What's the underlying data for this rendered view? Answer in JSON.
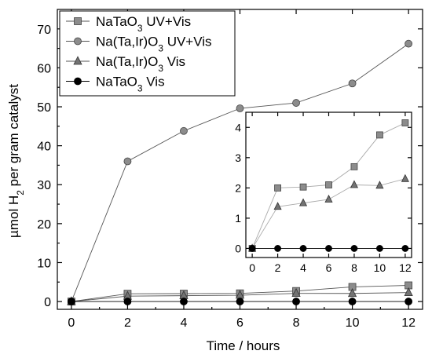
{
  "chart_data": {
    "type": "line",
    "xlabel": "Time / hours",
    "ylabel_parts": {
      "pre": "µmol H",
      "sub": "2",
      "post": " per gram catalyst"
    },
    "xlim": [
      -0.5,
      12.5
    ],
    "ylim": [
      -2,
      75
    ],
    "xticks": [
      0,
      2,
      4,
      6,
      8,
      10,
      12
    ],
    "yticks": [
      0,
      10,
      20,
      30,
      40,
      50,
      60,
      70
    ],
    "grid": false,
    "legend_position": "top-left",
    "series": [
      {
        "name": "NaTaO3 UV+Vis",
        "label_parts": {
          "pre": "NaTaO",
          "sub": "3",
          "post": " UV+Vis"
        },
        "marker": "square",
        "color": "#8c8c8c",
        "x": [
          0,
          2,
          4,
          6,
          8,
          10,
          12
        ],
        "y": [
          0,
          2.0,
          2.03,
          2.1,
          2.7,
          3.75,
          4.15
        ]
      },
      {
        "name": "Na(Ta,Ir)O3 UV+Vis",
        "label_parts": {
          "pre": "Na(Ta,Ir)O",
          "sub": "3",
          "post": " UV+Vis"
        },
        "marker": "circle",
        "color": "#8c8c8c",
        "x": [
          0,
          2,
          4,
          6,
          8,
          10,
          12
        ],
        "y": [
          0,
          36.0,
          43.8,
          49.6,
          51.0,
          56.0,
          66.2
        ]
      },
      {
        "name": "Na(Ta,Ir)O3 Vis",
        "label_parts": {
          "pre": "Na(Ta,Ir)O",
          "sub": "3",
          "post": " Vis"
        },
        "marker": "triangle",
        "color": "#737373",
        "x": [
          0,
          2,
          4,
          6,
          8,
          10,
          12
        ],
        "y": [
          0,
          1.38,
          1.5,
          1.62,
          2.1,
          2.08,
          2.3
        ]
      },
      {
        "name": "NaTaO3 Vis",
        "label_parts": {
          "pre": "NaTaO",
          "sub": "3",
          "post": " Vis"
        },
        "marker": "circle",
        "color": "#000000",
        "x": [
          0,
          2,
          4,
          6,
          8,
          10,
          12
        ],
        "y": [
          0,
          0,
          0,
          0,
          0,
          0,
          0
        ]
      }
    ],
    "inset": {
      "xlim": [
        -0.5,
        12.5
      ],
      "ylim": [
        -0.3,
        4.5
      ],
      "xticks": [
        0,
        2,
        4,
        6,
        8,
        10,
        12
      ],
      "yticks": [
        0,
        1,
        2,
        3,
        4
      ],
      "series_shown": [
        "NaTaO3 UV+Vis",
        "Na(Ta,Ir)O3 Vis",
        "NaTaO3 Vis"
      ]
    }
  }
}
